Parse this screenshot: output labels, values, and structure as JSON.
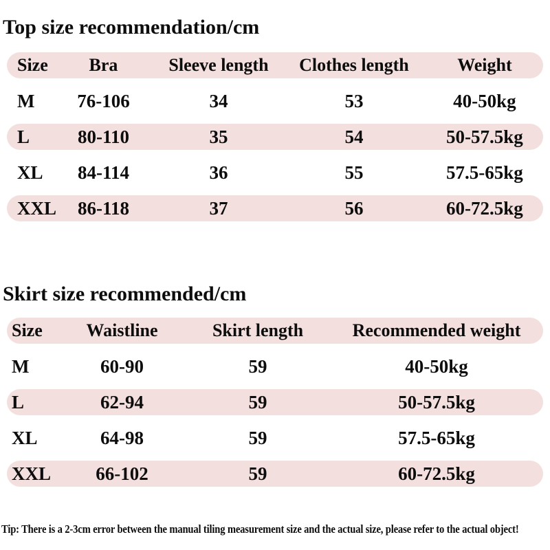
{
  "page": {
    "background_color": "#ffffff",
    "stripe_color": "#f3dfde",
    "text_color": "#0d0d0d"
  },
  "top_table": {
    "title": "Top size recommendation/cm",
    "headers": [
      "Size",
      "Bra",
      "Sleeve length",
      "Clothes length",
      "Weight"
    ],
    "rows": [
      [
        "M",
        "76-106",
        "34",
        "53",
        "40-50kg"
      ],
      [
        "L",
        "80-110",
        "35",
        "54",
        "50-57.5kg"
      ],
      [
        "XL",
        "84-114",
        "36",
        "55",
        "57.5-65kg"
      ],
      [
        "XXL",
        "86-118",
        "37",
        "56",
        "60-72.5kg"
      ]
    ]
  },
  "skirt_table": {
    "title": "Skirt size recommended/cm",
    "headers": [
      "Size",
      "Waistline",
      "Skirt length",
      "Recommended weight"
    ],
    "rows": [
      [
        "M",
        "60-90",
        "59",
        "40-50kg"
      ],
      [
        "L",
        "62-94",
        "59",
        "50-57.5kg"
      ],
      [
        "XL",
        "64-98",
        "59",
        "57.5-65kg"
      ],
      [
        "XXL",
        "66-102",
        "59",
        "60-72.5kg"
      ]
    ]
  },
  "tip": {
    "text": "Tip: There is a 2-3cm error between the manual tiling measurement size and the actual size, please refer to the actual object!"
  }
}
